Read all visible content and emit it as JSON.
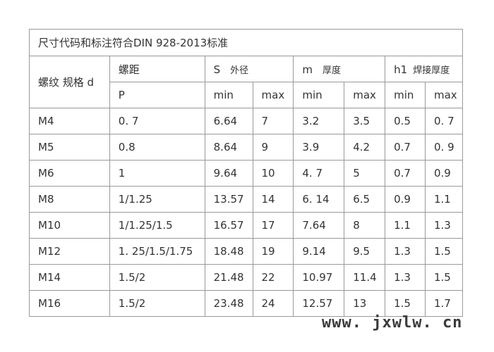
{
  "title": "尺寸代码和标注符合DIN 928-2013标准",
  "headers": {
    "thread": "螺纹 规格 d",
    "pitch": "螺距",
    "pitch_sub": "P",
    "s": "S",
    "s_desc": "外径",
    "m": "m",
    "m_desc": "厚度",
    "h1": "h1",
    "h1_desc": "焊接厚度",
    "min": "min",
    "max": "max"
  },
  "rows": [
    [
      "M4",
      "0. 7",
      "6.64",
      "7",
      "3.2",
      "3.5",
      "0.5",
      "0. 7"
    ],
    [
      "M5",
      "0.8",
      "8.64",
      "9",
      "3.9",
      "4.2",
      "0.7",
      "0. 9"
    ],
    [
      "M6",
      "1",
      "9.64",
      "10",
      "4. 7",
      "5",
      "0.7",
      "0.9"
    ],
    [
      "M8",
      "1/1.25",
      "13.57",
      "14",
      "6. 14",
      "6.5",
      "0.9",
      "1.1"
    ],
    [
      "M10",
      "1/1.25/1.5",
      "16.57",
      "17",
      "7.64",
      "8",
      "1.1",
      "1.3"
    ],
    [
      "M12",
      "1. 25/1.5/1.75",
      "18.48",
      "19",
      "9.14",
      "9.5",
      "1.3",
      "1.5"
    ],
    [
      "M14",
      "1.5/2",
      "21.48",
      "22",
      "10.97",
      "11.4",
      "1.3",
      "1.5"
    ],
    [
      "M16",
      "1.5/2",
      "23.48",
      "24",
      "12.57",
      "13",
      "1.5",
      "1.7"
    ]
  ],
  "watermark": "www. jxwlw. cn"
}
